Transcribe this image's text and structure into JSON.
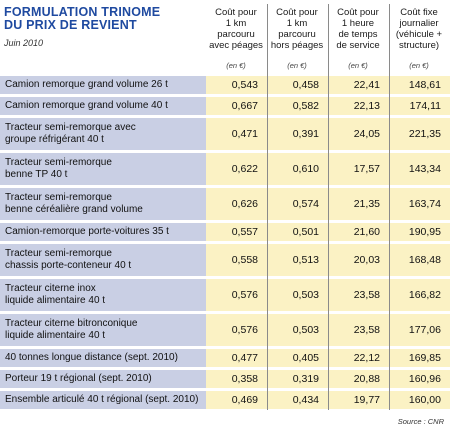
{
  "title_line1": "FORMULATION TRINOME",
  "title_line2": "DU PRIX DE REVIENT",
  "subtitle": "Juin 2010",
  "columns": [
    {
      "l1": "Coût pour",
      "l2": "1 km",
      "l3": "parcouru",
      "l4": "avec péages",
      "unit": "(en €)"
    },
    {
      "l1": "Coût pour",
      "l2": "1 km",
      "l3": "parcouru",
      "l4": "hors péages",
      "unit": "(en €)"
    },
    {
      "l1": "Coût pour",
      "l2": "1 heure",
      "l3": "de temps",
      "l4": "de service",
      "unit": "(en €)"
    },
    {
      "l1": "Coût fixe",
      "l2": "journalier",
      "l3": "(véhicule +",
      "l4": "structure)",
      "unit": "(en €)"
    }
  ],
  "rows": [
    {
      "l1": "Camion remorque grand volume 26 t",
      "l2": "",
      "values": [
        "0,543",
        "0,458",
        "22,41",
        "148,61"
      ]
    },
    {
      "l1": "Camion remorque grand volume 40 t",
      "l2": "",
      "values": [
        "0,667",
        "0,582",
        "22,13",
        "174,11"
      ]
    },
    {
      "l1": "Tracteur semi-remorque avec",
      "l2": "groupe réfrigérant 40 t",
      "values": [
        "0,471",
        "0,391",
        "24,05",
        "221,35"
      ]
    },
    {
      "l1": "Tracteur semi-remorque",
      "l2": "benne TP 40 t",
      "values": [
        "0,622",
        "0,610",
        "17,57",
        "143,34"
      ]
    },
    {
      "l1": "Tracteur semi-remorque",
      "l2": "benne céréalière grand volume",
      "values": [
        "0,626",
        "0,574",
        "21,35",
        "163,74"
      ]
    },
    {
      "l1": "Camion-remorque porte-voitures 35 t",
      "l2": "",
      "values": [
        "0,557",
        "0,501",
        "21,60",
        "190,95"
      ]
    },
    {
      "l1": "Tracteur semi-remorque",
      "l2": "chassis porte-conteneur 40 t",
      "values": [
        "0,558",
        "0,513",
        "20,03",
        "168,48"
      ]
    },
    {
      "l1": "Tracteur citerne inox",
      "l2": "liquide alimentaire 40 t",
      "values": [
        "0,576",
        "0,503",
        "23,58",
        "166,82"
      ]
    },
    {
      "l1": "Tracteur citerne bitronconique",
      "l2": "liquide alimentaire 40 t",
      "values": [
        "0,576",
        "0,503",
        "23,58",
        "177,06"
      ]
    },
    {
      "l1": "40 tonnes longue distance (sept. 2010)",
      "l2": "",
      "values": [
        "0,477",
        "0,405",
        "22,12",
        "169,85"
      ]
    },
    {
      "l1": "Porteur 19 t régional (sept. 2010)",
      "l2": "",
      "values": [
        "0,358",
        "0,319",
        "20,88",
        "160,96"
      ]
    },
    {
      "l1": "Ensemble articulé 40 t régional (sept. 2010)",
      "l2": "",
      "values": [
        "0,469",
        "0,434",
        "19,77",
        "160,00"
      ]
    }
  ],
  "source": "Source : CNR"
}
